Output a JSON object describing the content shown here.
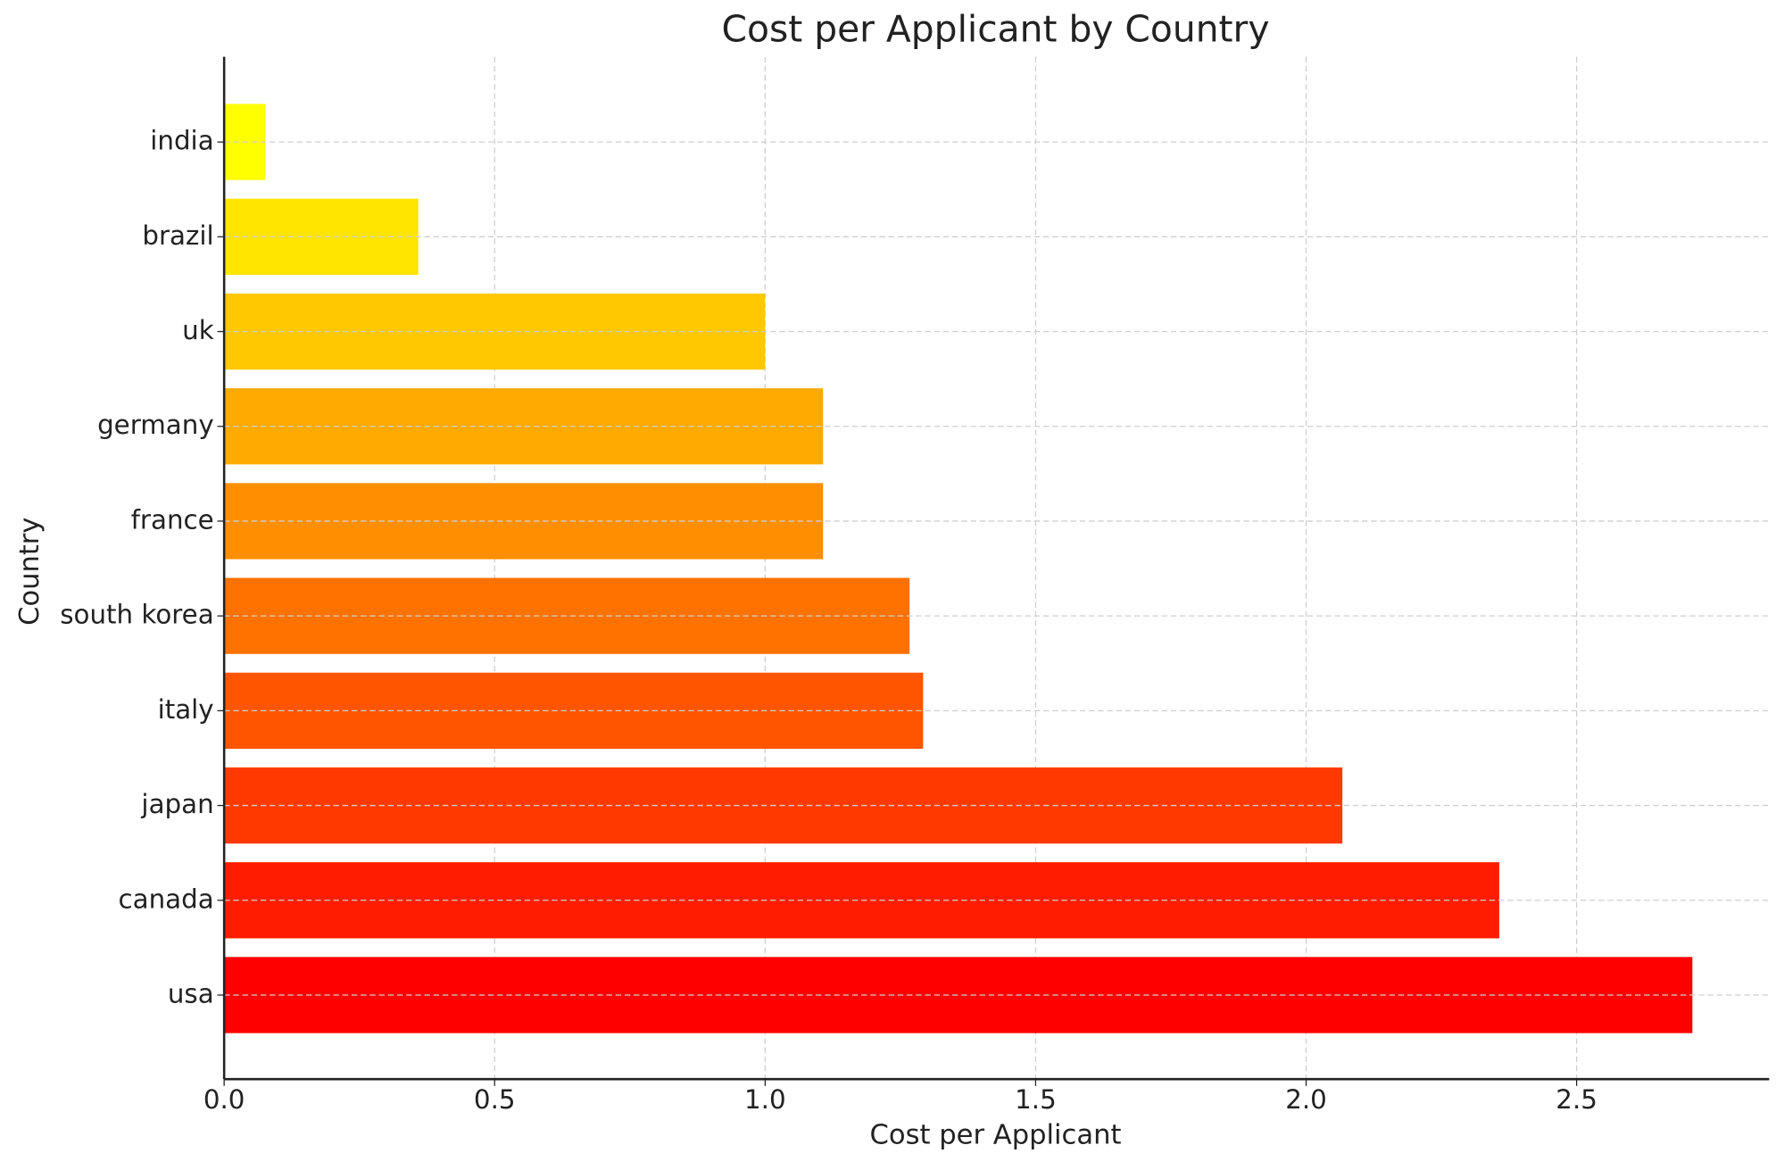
{
  "chart_data": {
    "type": "barh",
    "title": "Cost per Applicant by Country",
    "xlabel": "Cost per Applicant",
    "ylabel": "Country",
    "categories": [
      "india",
      "brazil",
      "uk",
      "germany",
      "france",
      "south korea",
      "italy",
      "japan",
      "canada",
      "usa"
    ],
    "values": [
      0.076,
      0.359,
      1.0,
      1.107,
      1.107,
      1.267,
      1.292,
      2.067,
      2.357,
      2.714
    ],
    "colors": [
      "#ffff00",
      "#ffe500",
      "#ffc800",
      "#ffaa00",
      "#ff8e00",
      "#ff7200",
      "#ff5500",
      "#ff3900",
      "#ff1c00",
      "#ff0000"
    ],
    "xlim": [
      0,
      2.856
    ],
    "xticks": [
      {
        "value": 0,
        "label": "0.0"
      },
      0.5,
      {
        "value": 1,
        "label": "1.0"
      },
      1.5,
      {
        "value": 2,
        "label": "2.0"
      },
      2.5
    ],
    "grid": true
  }
}
